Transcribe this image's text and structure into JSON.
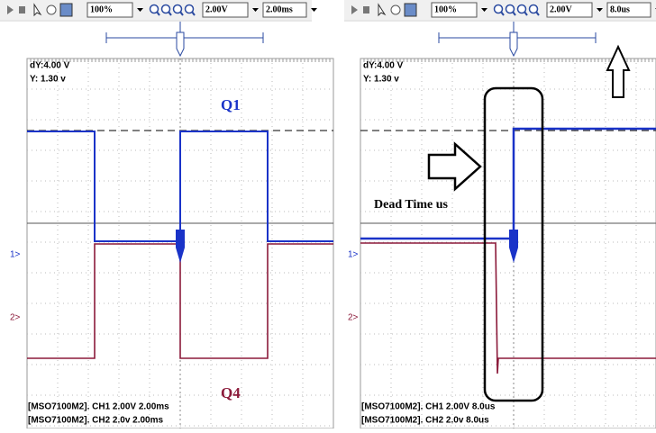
{
  "panels": [
    {
      "toolbar": {
        "zoom": "100%",
        "volts": "2.00V",
        "time": "2.00ms"
      },
      "cursor": {
        "dy": "dY:4.00 V",
        "y": "Y: 1.30 v"
      },
      "channel_markers": [
        "1>",
        "2>"
      ],
      "labels": [
        "Q1",
        "Q4"
      ],
      "footer": [
        "[MSO7100M2]. CH1 2.00V 2.00ms",
        "[MSO7100M2]. CH2 2.0v 2.00ms"
      ]
    },
    {
      "toolbar": {
        "zoom": "100%",
        "volts": "2.00V",
        "time": "8.0us"
      },
      "cursor": {
        "dy": "dY:4.00 V",
        "y": "Y: 1.30 v"
      },
      "channel_markers": [
        "1>",
        "2>"
      ],
      "annotation": "Dead Time us",
      "footer": [
        "[MSO7100M2]. CH1 2.00V 8.0us",
        "[MSO7100M2]. CH2 2.0v 8.0us"
      ]
    }
  ]
}
